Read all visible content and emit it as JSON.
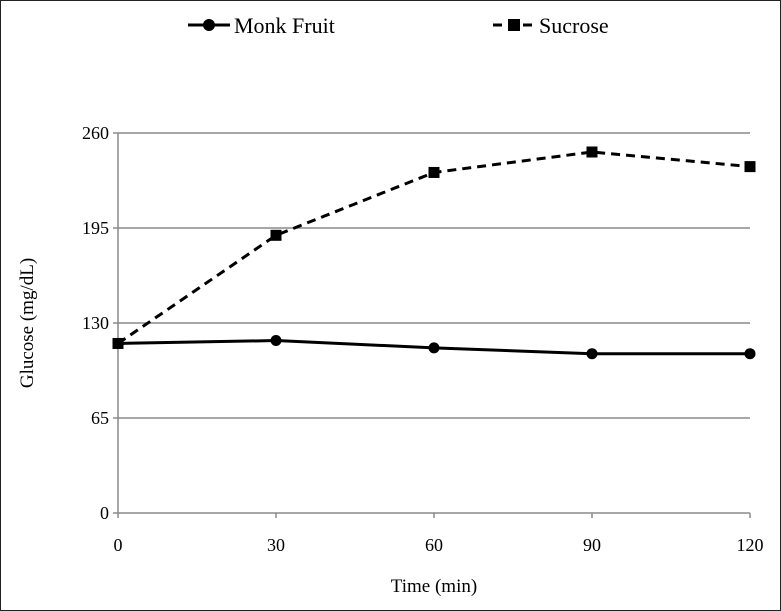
{
  "chart_data": {
    "type": "line",
    "title": "",
    "xlabel": "Time (min)",
    "ylabel": "Glucose (mg/dL)",
    "x": [
      0,
      30,
      60,
      90,
      120
    ],
    "xlim": [
      0,
      120
    ],
    "ylim": [
      0,
      260
    ],
    "xticks": [
      0,
      30,
      60,
      90,
      120
    ],
    "yticks": [
      0,
      65,
      130,
      195,
      260
    ],
    "grid": "horizontal",
    "legend_position": "top",
    "series": [
      {
        "name": "Monk Fruit",
        "values": [
          116,
          118,
          113,
          109,
          109
        ],
        "marker": "circle",
        "line": "solid",
        "color": "#000000"
      },
      {
        "name": "Sucrose",
        "values": [
          116,
          190,
          233,
          247,
          237
        ],
        "marker": "square",
        "line": "dashed",
        "color": "#000000"
      }
    ]
  }
}
